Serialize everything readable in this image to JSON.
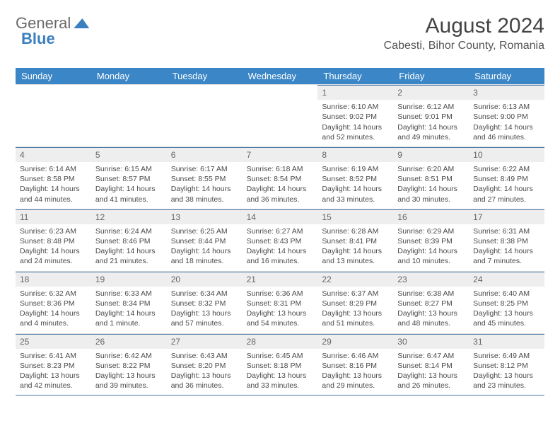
{
  "brand": {
    "word1": "General",
    "word2": "Blue"
  },
  "header": {
    "title": "August 2024",
    "subtitle": "Cabesti, Bihor County, Romania"
  },
  "colors": {
    "header_bg": "#3b86c6",
    "header_text": "#ffffff",
    "daynum_bg": "#eeeeee",
    "border_accent": "#4b7aaa"
  },
  "day_names": [
    "Sunday",
    "Monday",
    "Tuesday",
    "Wednesday",
    "Thursday",
    "Friday",
    "Saturday"
  ],
  "weeks": [
    [
      {
        "empty": true
      },
      {
        "empty": true
      },
      {
        "empty": true
      },
      {
        "empty": true
      },
      {
        "day": "1",
        "sunrise": "Sunrise: 6:10 AM",
        "sunset": "Sunset: 9:02 PM",
        "daylight1": "Daylight: 14 hours",
        "daylight2": "and 52 minutes."
      },
      {
        "day": "2",
        "sunrise": "Sunrise: 6:12 AM",
        "sunset": "Sunset: 9:01 PM",
        "daylight1": "Daylight: 14 hours",
        "daylight2": "and 49 minutes."
      },
      {
        "day": "3",
        "sunrise": "Sunrise: 6:13 AM",
        "sunset": "Sunset: 9:00 PM",
        "daylight1": "Daylight: 14 hours",
        "daylight2": "and 46 minutes."
      }
    ],
    [
      {
        "day": "4",
        "sunrise": "Sunrise: 6:14 AM",
        "sunset": "Sunset: 8:58 PM",
        "daylight1": "Daylight: 14 hours",
        "daylight2": "and 44 minutes."
      },
      {
        "day": "5",
        "sunrise": "Sunrise: 6:15 AM",
        "sunset": "Sunset: 8:57 PM",
        "daylight1": "Daylight: 14 hours",
        "daylight2": "and 41 minutes."
      },
      {
        "day": "6",
        "sunrise": "Sunrise: 6:17 AM",
        "sunset": "Sunset: 8:55 PM",
        "daylight1": "Daylight: 14 hours",
        "daylight2": "and 38 minutes."
      },
      {
        "day": "7",
        "sunrise": "Sunrise: 6:18 AM",
        "sunset": "Sunset: 8:54 PM",
        "daylight1": "Daylight: 14 hours",
        "daylight2": "and 36 minutes."
      },
      {
        "day": "8",
        "sunrise": "Sunrise: 6:19 AM",
        "sunset": "Sunset: 8:52 PM",
        "daylight1": "Daylight: 14 hours",
        "daylight2": "and 33 minutes."
      },
      {
        "day": "9",
        "sunrise": "Sunrise: 6:20 AM",
        "sunset": "Sunset: 8:51 PM",
        "daylight1": "Daylight: 14 hours",
        "daylight2": "and 30 minutes."
      },
      {
        "day": "10",
        "sunrise": "Sunrise: 6:22 AM",
        "sunset": "Sunset: 8:49 PM",
        "daylight1": "Daylight: 14 hours",
        "daylight2": "and 27 minutes."
      }
    ],
    [
      {
        "day": "11",
        "sunrise": "Sunrise: 6:23 AM",
        "sunset": "Sunset: 8:48 PM",
        "daylight1": "Daylight: 14 hours",
        "daylight2": "and 24 minutes."
      },
      {
        "day": "12",
        "sunrise": "Sunrise: 6:24 AM",
        "sunset": "Sunset: 8:46 PM",
        "daylight1": "Daylight: 14 hours",
        "daylight2": "and 21 minutes."
      },
      {
        "day": "13",
        "sunrise": "Sunrise: 6:25 AM",
        "sunset": "Sunset: 8:44 PM",
        "daylight1": "Daylight: 14 hours",
        "daylight2": "and 18 minutes."
      },
      {
        "day": "14",
        "sunrise": "Sunrise: 6:27 AM",
        "sunset": "Sunset: 8:43 PM",
        "daylight1": "Daylight: 14 hours",
        "daylight2": "and 16 minutes."
      },
      {
        "day": "15",
        "sunrise": "Sunrise: 6:28 AM",
        "sunset": "Sunset: 8:41 PM",
        "daylight1": "Daylight: 14 hours",
        "daylight2": "and 13 minutes."
      },
      {
        "day": "16",
        "sunrise": "Sunrise: 6:29 AM",
        "sunset": "Sunset: 8:39 PM",
        "daylight1": "Daylight: 14 hours",
        "daylight2": "and 10 minutes."
      },
      {
        "day": "17",
        "sunrise": "Sunrise: 6:31 AM",
        "sunset": "Sunset: 8:38 PM",
        "daylight1": "Daylight: 14 hours",
        "daylight2": "and 7 minutes."
      }
    ],
    [
      {
        "day": "18",
        "sunrise": "Sunrise: 6:32 AM",
        "sunset": "Sunset: 8:36 PM",
        "daylight1": "Daylight: 14 hours",
        "daylight2": "and 4 minutes."
      },
      {
        "day": "19",
        "sunrise": "Sunrise: 6:33 AM",
        "sunset": "Sunset: 8:34 PM",
        "daylight1": "Daylight: 14 hours",
        "daylight2": "and 1 minute."
      },
      {
        "day": "20",
        "sunrise": "Sunrise: 6:34 AM",
        "sunset": "Sunset: 8:32 PM",
        "daylight1": "Daylight: 13 hours",
        "daylight2": "and 57 minutes."
      },
      {
        "day": "21",
        "sunrise": "Sunrise: 6:36 AM",
        "sunset": "Sunset: 8:31 PM",
        "daylight1": "Daylight: 13 hours",
        "daylight2": "and 54 minutes."
      },
      {
        "day": "22",
        "sunrise": "Sunrise: 6:37 AM",
        "sunset": "Sunset: 8:29 PM",
        "daylight1": "Daylight: 13 hours",
        "daylight2": "and 51 minutes."
      },
      {
        "day": "23",
        "sunrise": "Sunrise: 6:38 AM",
        "sunset": "Sunset: 8:27 PM",
        "daylight1": "Daylight: 13 hours",
        "daylight2": "and 48 minutes."
      },
      {
        "day": "24",
        "sunrise": "Sunrise: 6:40 AM",
        "sunset": "Sunset: 8:25 PM",
        "daylight1": "Daylight: 13 hours",
        "daylight2": "and 45 minutes."
      }
    ],
    [
      {
        "day": "25",
        "sunrise": "Sunrise: 6:41 AM",
        "sunset": "Sunset: 8:23 PM",
        "daylight1": "Daylight: 13 hours",
        "daylight2": "and 42 minutes."
      },
      {
        "day": "26",
        "sunrise": "Sunrise: 6:42 AM",
        "sunset": "Sunset: 8:22 PM",
        "daylight1": "Daylight: 13 hours",
        "daylight2": "and 39 minutes."
      },
      {
        "day": "27",
        "sunrise": "Sunrise: 6:43 AM",
        "sunset": "Sunset: 8:20 PM",
        "daylight1": "Daylight: 13 hours",
        "daylight2": "and 36 minutes."
      },
      {
        "day": "28",
        "sunrise": "Sunrise: 6:45 AM",
        "sunset": "Sunset: 8:18 PM",
        "daylight1": "Daylight: 13 hours",
        "daylight2": "and 33 minutes."
      },
      {
        "day": "29",
        "sunrise": "Sunrise: 6:46 AM",
        "sunset": "Sunset: 8:16 PM",
        "daylight1": "Daylight: 13 hours",
        "daylight2": "and 29 minutes."
      },
      {
        "day": "30",
        "sunrise": "Sunrise: 6:47 AM",
        "sunset": "Sunset: 8:14 PM",
        "daylight1": "Daylight: 13 hours",
        "daylight2": "and 26 minutes."
      },
      {
        "day": "31",
        "sunrise": "Sunrise: 6:49 AM",
        "sunset": "Sunset: 8:12 PM",
        "daylight1": "Daylight: 13 hours",
        "daylight2": "and 23 minutes."
      }
    ]
  ]
}
